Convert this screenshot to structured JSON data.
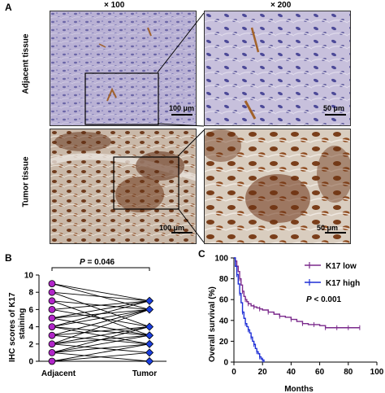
{
  "panel_a": {
    "letter": "A",
    "mag_left": "× 100",
    "mag_right": "× 200",
    "row_top_label": "Adjacent tissue",
    "row_bottom_label": "Tumor tissue",
    "scale_100": "100 μm",
    "scale_50": "50 μm"
  },
  "panel_b": {
    "letter": "B",
    "ylabel_line1": "IHC scores of K17",
    "ylabel_line2": "staining",
    "p_prefix": "P",
    "p_value": " = 0.046",
    "y_ticks": [
      "0",
      "2",
      "4",
      "6",
      "8",
      "10"
    ],
    "x_categories": [
      "Adjacent",
      "Tumor"
    ]
  },
  "panel_c": {
    "letter": "C",
    "ylabel": "Overall survival (%)",
    "xlabel": "Months",
    "y_ticks": [
      "0",
      "20",
      "40",
      "60",
      "80",
      "100"
    ],
    "x_ticks": [
      "0",
      "20",
      "40",
      "60",
      "80",
      "100"
    ],
    "legend_low": "K17 low",
    "legend_high": "K17 high",
    "p_prefix": "P",
    "p_value": " < 0.001"
  },
  "colors": {
    "k17_low": "#7b2a8c",
    "k17_high": "#1f2fd6",
    "adjacent_marker": "#b026c8",
    "tumor_marker": "#1b3fe0"
  },
  "chart_data": [
    {
      "type": "scatter",
      "ylabel": "IHC scores of K17 staining",
      "categories": [
        "Adjacent",
        "Tumor"
      ],
      "ylim": [
        0,
        10
      ],
      "pairs": [
        [
          0,
          0
        ],
        [
          0,
          1
        ],
        [
          0,
          2
        ],
        [
          1,
          0
        ],
        [
          1,
          2
        ],
        [
          1,
          3
        ],
        [
          1,
          4
        ],
        [
          2,
          1
        ],
        [
          2,
          3
        ],
        [
          2,
          4
        ],
        [
          2,
          6
        ],
        [
          3,
          2
        ],
        [
          3,
          4
        ],
        [
          3,
          6
        ],
        [
          4,
          2
        ],
        [
          4,
          3
        ],
        [
          4,
          6
        ],
        [
          4,
          7
        ],
        [
          5,
          3
        ],
        [
          5,
          6
        ],
        [
          5,
          7
        ],
        [
          6,
          4
        ],
        [
          6,
          7
        ],
        [
          7,
          3
        ],
        [
          7,
          6
        ],
        [
          8,
          4
        ],
        [
          8,
          7
        ],
        [
          9,
          6
        ],
        [
          9,
          7
        ]
      ],
      "annotation": "P = 0.046"
    },
    {
      "type": "line",
      "title": "",
      "xlabel": "Months",
      "ylabel": "Overall survival (%)",
      "xlim": [
        0,
        100
      ],
      "ylim": [
        0,
        100
      ],
      "series": [
        {
          "name": "K17 low",
          "x": [
            0,
            1,
            2,
            3,
            4,
            5,
            6,
            7,
            8,
            9,
            10,
            12,
            14,
            16,
            18,
            20,
            24,
            28,
            32,
            36,
            40,
            44,
            48,
            52,
            56,
            60,
            64,
            68,
            72,
            76,
            80,
            84,
            88
          ],
          "y": [
            100,
            97,
            92,
            87,
            80,
            74,
            68,
            63,
            60,
            58,
            56,
            54,
            53,
            52,
            51,
            50,
            48,
            46,
            44,
            43,
            41,
            39,
            37,
            36,
            36,
            35,
            33,
            33,
            33,
            33,
            33,
            33,
            33
          ]
        },
        {
          "name": "K17 high",
          "x": [
            0,
            1,
            2,
            3,
            4,
            5,
            6,
            7,
            8,
            9,
            10,
            11,
            12,
            13,
            14,
            15,
            16,
            17,
            18,
            19,
            20,
            21
          ],
          "y": [
            100,
            92,
            84,
            75,
            66,
            57,
            48,
            42,
            37,
            34,
            31,
            28,
            24,
            20,
            17,
            13,
            10,
            8,
            5,
            3,
            2,
            0
          ]
        }
      ],
      "annotation": "P < 0.001"
    }
  ]
}
